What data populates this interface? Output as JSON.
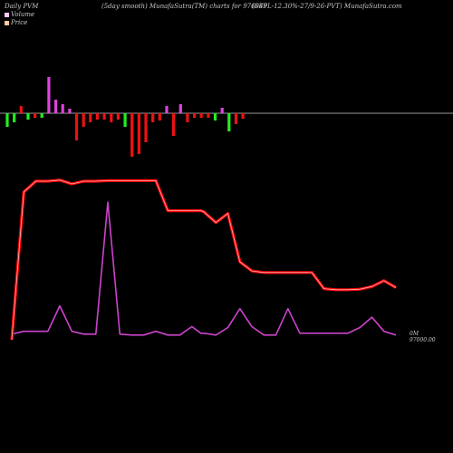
{
  "header": {
    "left": "Daily PVM",
    "center": "(5day smooth) MunafaSutra(TM) charts for 976049",
    "right": "(SFPL-12.30%-27/9-26-PVT) MunafaSutra.com"
  },
  "legend": [
    {
      "label": "Volume",
      "color": "#ffc8ff"
    },
    {
      "label": "Price",
      "color": "#ffc8a0"
    }
  ],
  "colors": {
    "background": "#000000",
    "baseline": "#c8c8c8",
    "price_outer": "#ff0000",
    "price_inner": "#ffb4b4",
    "volume_line": "#cc44cc",
    "bar_up": "#22ee22",
    "bar_down": "#ee1111",
    "bar_spike": "#dd44dd"
  },
  "chart_data": {
    "type": "line",
    "price_label_line1": "0M",
    "price_label_line2": "97000.00",
    "x": [
      0,
      1,
      2,
      3,
      4,
      5,
      6,
      7,
      8,
      9,
      10,
      11,
      12,
      13,
      14,
      15,
      15.75,
      16,
      17,
      18,
      19,
      20,
      21,
      22,
      23,
      24,
      25,
      26,
      27,
      28,
      29,
      30,
      31,
      32
    ],
    "series": [
      {
        "key": "price",
        "values": [
          97000,
          99750,
          99950,
          99950,
          99970,
          99900,
          99950,
          99950,
          99960,
          99960,
          99960,
          99960,
          99960,
          99400,
          99400,
          99400,
          99400,
          99380,
          99180,
          99350,
          98450,
          98280,
          98250,
          98250,
          98250,
          98250,
          98250,
          97950,
          97930,
          97930,
          97940,
          97990,
          98100,
          97970
        ]
      },
      {
        "key": "volume",
        "values": [
          0.05,
          0.08,
          0.08,
          0.08,
          0.35,
          0.08,
          0.05,
          0.05,
          1.45,
          0.05,
          0.04,
          0.04,
          0.08,
          0.04,
          0.04,
          0.13,
          0.06,
          0.06,
          0.04,
          0.12,
          0.32,
          0.13,
          0.04,
          0.04,
          0.32,
          0.06,
          0.06,
          0.06,
          0.06,
          0.06,
          0.12,
          0.23,
          0.08,
          0.04
        ]
      }
    ],
    "bars": [
      {
        "x": 0,
        "v": -1.5,
        "c": "up"
      },
      {
        "x": 1,
        "v": -1.0,
        "c": "up"
      },
      {
        "x": 2,
        "v": 0.8,
        "c": "down"
      },
      {
        "x": 3,
        "v": -0.7,
        "c": "up"
      },
      {
        "x": 4,
        "v": -0.5,
        "c": "down"
      },
      {
        "x": 5,
        "v": -0.5,
        "c": "up"
      },
      {
        "x": 6,
        "v": 4.0,
        "c": "spike"
      },
      {
        "x": 7,
        "v": 1.5,
        "c": "spike"
      },
      {
        "x": 8,
        "v": 1.0,
        "c": "spike"
      },
      {
        "x": 9,
        "v": 0.5,
        "c": "spike"
      },
      {
        "x": 10,
        "v": -3.0,
        "c": "down"
      },
      {
        "x": 11,
        "v": -1.5,
        "c": "down"
      },
      {
        "x": 12,
        "v": -1.0,
        "c": "down"
      },
      {
        "x": 13,
        "v": -0.7,
        "c": "down"
      },
      {
        "x": 14,
        "v": -0.7,
        "c": "down"
      },
      {
        "x": 15,
        "v": -1.0,
        "c": "down"
      },
      {
        "x": 16,
        "v": -0.7,
        "c": "down"
      },
      {
        "x": 17,
        "v": -1.5,
        "c": "up"
      },
      {
        "x": 18,
        "v": -4.8,
        "c": "down"
      },
      {
        "x": 19,
        "v": -4.5,
        "c": "down"
      },
      {
        "x": 20,
        "v": -3.2,
        "c": "down"
      },
      {
        "x": 21,
        "v": -1.0,
        "c": "down"
      },
      {
        "x": 22,
        "v": -0.8,
        "c": "down"
      },
      {
        "x": 23,
        "v": 0.8,
        "c": "spike"
      },
      {
        "x": 24,
        "v": -2.5,
        "c": "down"
      },
      {
        "x": 25,
        "v": 1.0,
        "c": "spike"
      },
      {
        "x": 26,
        "v": -1.0,
        "c": "down"
      },
      {
        "x": 27,
        "v": -0.5,
        "c": "down"
      },
      {
        "x": 28,
        "v": -0.5,
        "c": "down"
      },
      {
        "x": 29,
        "v": -0.5,
        "c": "down"
      },
      {
        "x": 30,
        "v": -0.8,
        "c": "up"
      },
      {
        "x": 31,
        "v": 0.6,
        "c": "spike"
      },
      {
        "x": 32,
        "v": -2.0,
        "c": "up"
      },
      {
        "x": 33,
        "v": -1.2,
        "c": "down"
      },
      {
        "x": 34,
        "v": -0.6,
        "c": "down"
      }
    ]
  }
}
